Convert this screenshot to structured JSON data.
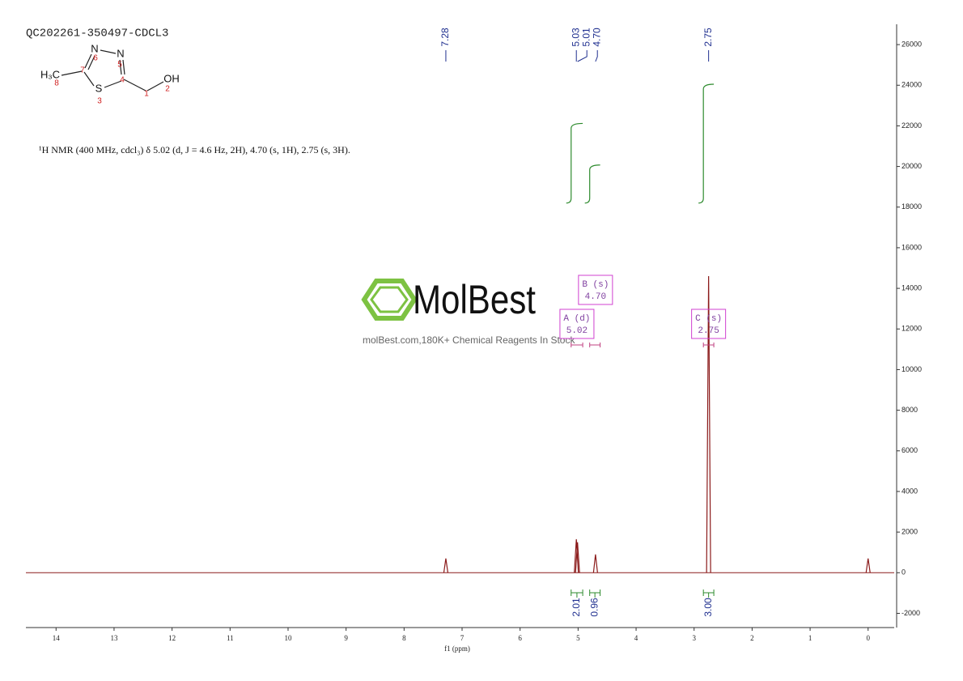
{
  "chart_data": {
    "type": "nmr",
    "title": "QC202261-350497-CDCL3",
    "description": "¹H NMR (400 MHz, cdcl₃) δ 5.02 (d, J = 4.6 Hz, 2H), 4.70 (s, 1H), 2.75 (s, 3H).",
    "x_label": "f1 (ppm)",
    "xlim": [
      14.52,
      -0.45
    ],
    "xticks": [
      14,
      13,
      12,
      11,
      10,
      9,
      8,
      7,
      6,
      5,
      4,
      3,
      2,
      1,
      0
    ],
    "ylim": [
      -2700,
      27000
    ],
    "yticks": [
      -2000,
      0,
      2000,
      4000,
      6000,
      8000,
      10000,
      12000,
      14000,
      16000,
      18000,
      20000,
      22000,
      24000,
      26000
    ],
    "color": "#8b1a1a",
    "peaks": [
      {
        "ppm": 7.28,
        "height": 700
      },
      {
        "ppm": 5.03,
        "height": 1650
      },
      {
        "ppm": 5.01,
        "height": 1500
      },
      {
        "ppm": 4.7,
        "height": 900
      },
      {
        "ppm": 2.75,
        "height": 14600
      },
      {
        "ppm": 0,
        "height": 700
      }
    ],
    "peak_labels": [
      7.28,
      5.03,
      5.01,
      {
        "value": 4.7,
        "label": "4.70"
      },
      2.75
    ],
    "integrals": [
      {
        "from": 5.12,
        "to": 4.92,
        "value": 2.01,
        "label": "2.01"
      },
      {
        "from": 4.8,
        "to": 4.62,
        "value": 0.96,
        "label": "0.96"
      },
      {
        "from": 2.84,
        "to": 2.66,
        "value": 3,
        "label": "3.00"
      }
    ],
    "multiplets": [
      {
        "label": "A (d)",
        "shift": 5.02,
        "shift_label": "5.02",
        "range": [
          5.12,
          4.92
        ]
      },
      {
        "label": "B (s)",
        "shift": 4.7,
        "shift_label": "4.70",
        "range": [
          4.8,
          4.62
        ]
      },
      {
        "label": "C (s)",
        "shift": 2.75,
        "shift_label": "2.75",
        "range": [
          2.84,
          2.66
        ]
      }
    ],
    "structure": {
      "atoms": [
        "N",
        "N",
        "S",
        "H₃C",
        "OH"
      ],
      "numbers": [
        "6",
        "5",
        "7",
        "4",
        "3",
        "8",
        "1",
        "2"
      ]
    },
    "watermark": {
      "brand": "MolBest",
      "slogan": "molBest.com,180K+ Chemical Reagents In Stock"
    }
  }
}
